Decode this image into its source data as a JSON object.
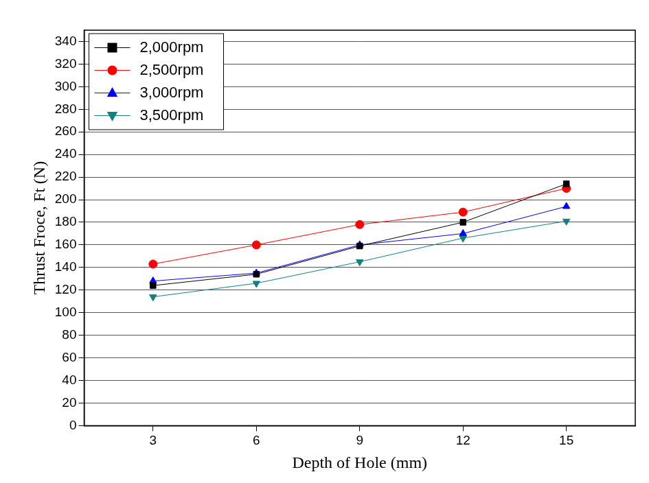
{
  "chart_data": {
    "type": "line",
    "x_label": "Depth of Hole (mm)",
    "y_label": "Thrust Froce, Ft (N)",
    "x": [
      3,
      6,
      9,
      12,
      15
    ],
    "series": [
      {
        "name": "2,000rpm",
        "color": "#000000",
        "marker": "square",
        "values": [
          124,
          134,
          159,
          180,
          214
        ]
      },
      {
        "name": "2,500rpm",
        "color": "#ff0000",
        "marker": "circle",
        "values": [
          143,
          160,
          178,
          189,
          210
        ]
      },
      {
        "name": "3,000rpm",
        "color": "#0000ff",
        "marker": "triangle-up",
        "values": [
          128,
          135,
          160,
          170,
          194
        ]
      },
      {
        "name": "3,500rpm",
        "color": "#108080",
        "marker": "triangle-down",
        "values": [
          114,
          126,
          145,
          166,
          181
        ]
      }
    ],
    "xlim": [
      1,
      17
    ],
    "xticks": [
      3,
      6,
      9,
      12,
      15
    ],
    "ylim": [
      0,
      350
    ],
    "yticks": [
      0,
      20,
      40,
      60,
      80,
      100,
      120,
      140,
      160,
      180,
      200,
      220,
      240,
      260,
      280,
      300,
      320,
      340
    ],
    "grid": true,
    "legend": "top-left"
  }
}
